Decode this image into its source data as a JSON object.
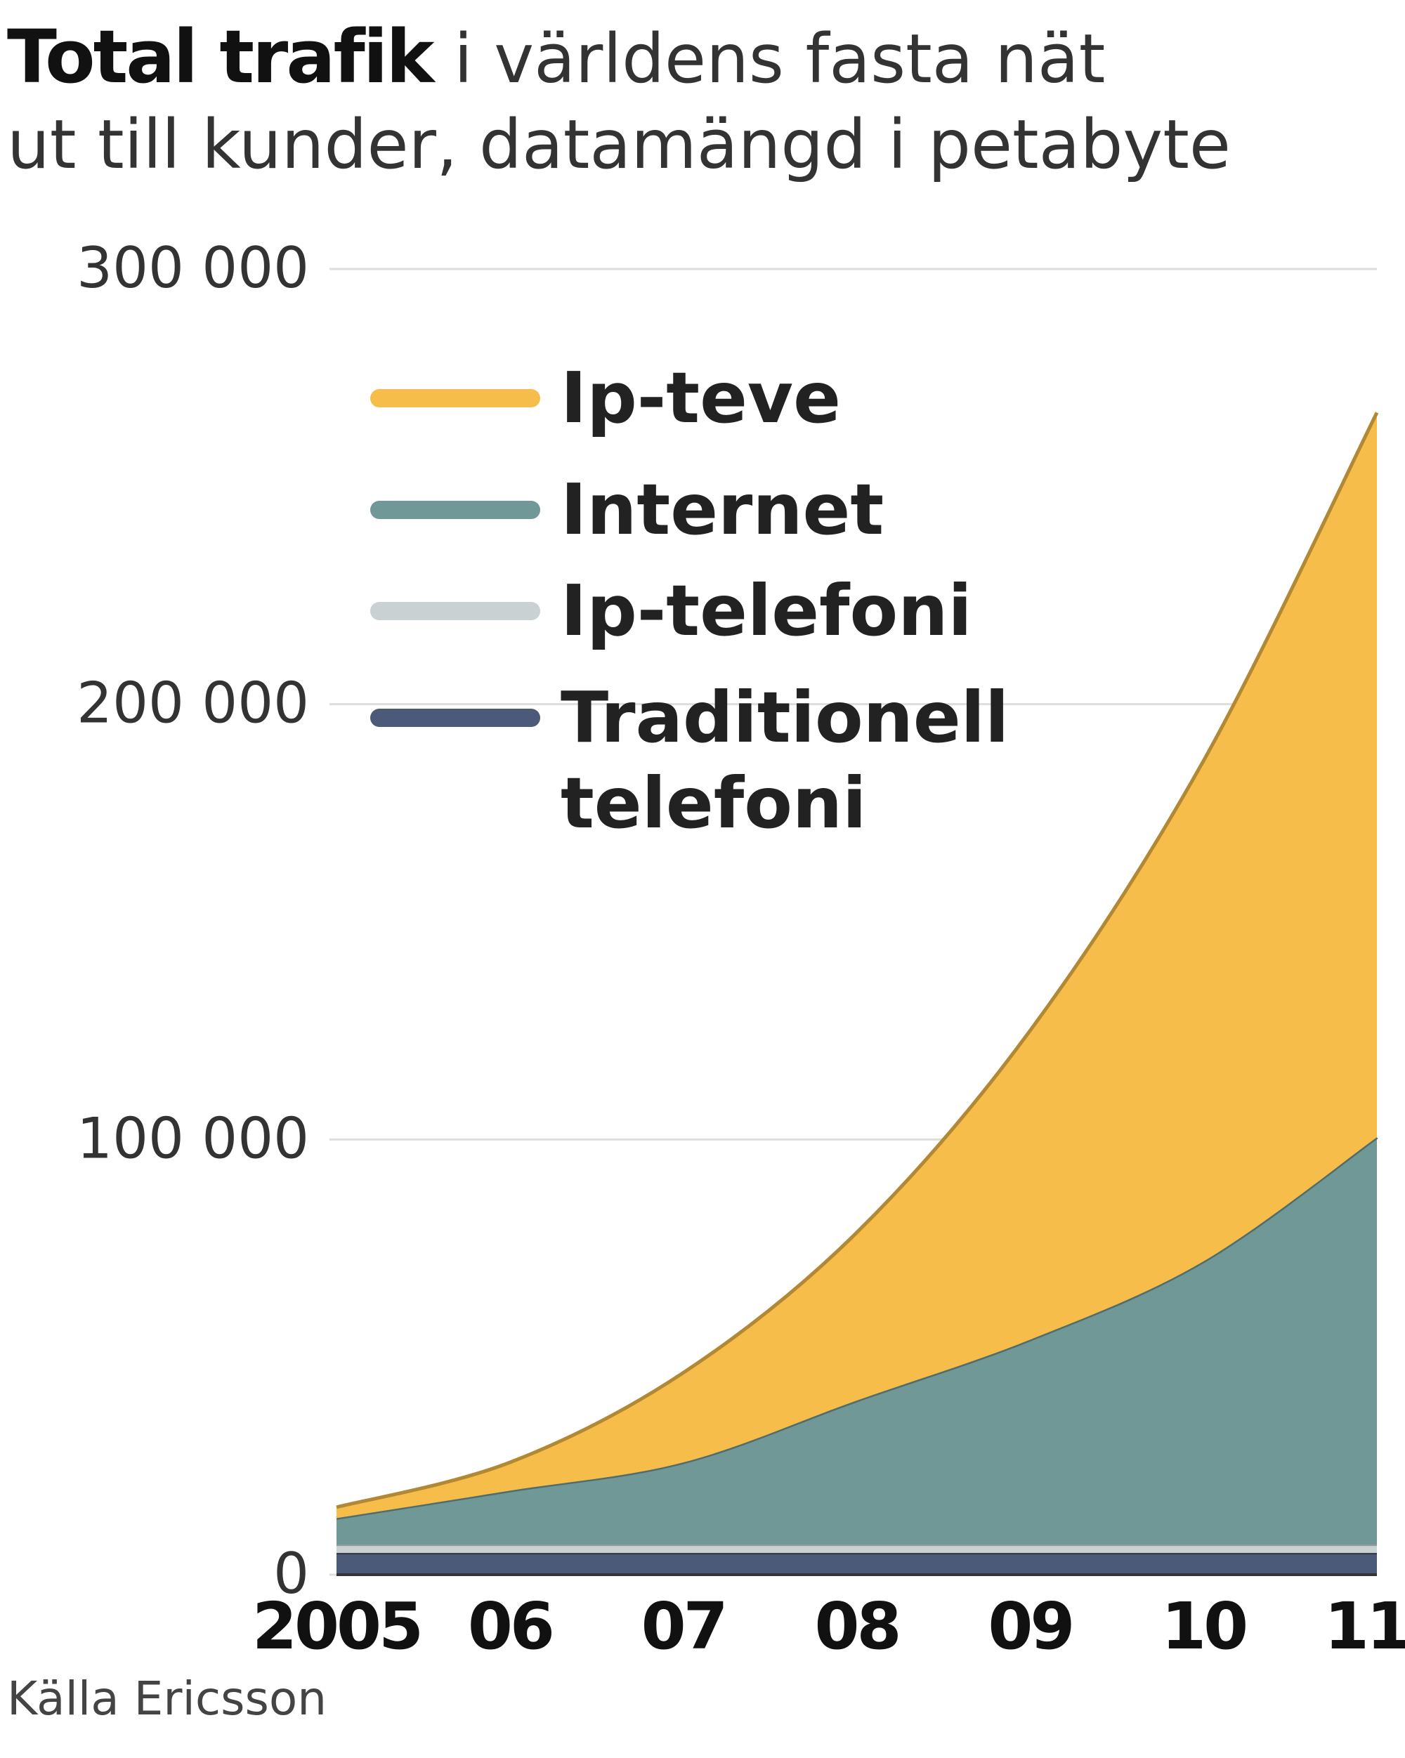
{
  "chart_data": {
    "type": "stacked_area",
    "title": "Total trafik",
    "subtitle": [
      "i världens fasta nät",
      "ut till kunder, datamängd i petabyte"
    ],
    "source": "Källa Ericsson",
    "categories": [
      "2005",
      "06",
      "07",
      "08",
      "09",
      "10",
      "11"
    ],
    "series": [
      {
        "name": "Traditionell telefoni",
        "color": "#4b5a78",
        "values": [
          5000,
          5000,
          5000,
          5000,
          5000,
          5000,
          5000
        ]
      },
      {
        "name": "Ip-telefoni",
        "color": "#c9d1d3",
        "values": [
          2000,
          2000,
          2000,
          2000,
          2000,
          2000,
          2000
        ]
      },
      {
        "name": "Internet",
        "color": "#6f9896",
        "values": [
          6000,
          12300,
          18800,
          33000,
          47000,
          65000,
          93500
        ]
      },
      {
        "name": "Ip-teve",
        "color": "#f6bd4a",
        "values": [
          2500,
          6500,
          20600,
          38600,
          71000,
          115000,
          166500
        ]
      }
    ],
    "ylim": [
      0,
      300000
    ],
    "yticks": [
      0,
      {
        "value": 100000,
        "label": "100 000"
      },
      {
        "value": 200000,
        "label": "200 000"
      },
      {
        "value": 300000,
        "label": "300 000"
      }
    ],
    "grid": true
  }
}
